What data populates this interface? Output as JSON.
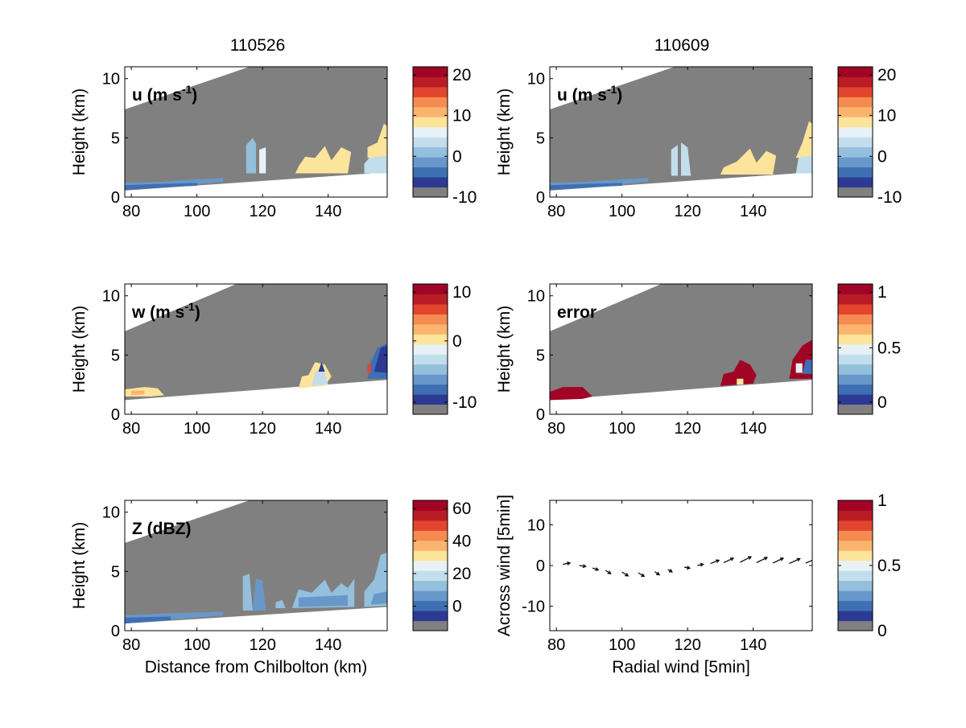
{
  "figure": {
    "columns": [
      {
        "title": "110526"
      },
      {
        "title": "110609"
      }
    ]
  },
  "palette": {
    "gray": "#808080",
    "colors": [
      "#2c3a94",
      "#3f6fb3",
      "#6898c9",
      "#94bfdd",
      "#c2deec",
      "#e8f2f6",
      "#fde49b",
      "#fbb46e",
      "#f58b51",
      "#e1452e",
      "#ba1c26",
      "#a10526"
    ]
  },
  "chart_data": [
    {
      "id": "u_110526",
      "type": "heatmap",
      "column": "110526",
      "label": "u (m s",
      "label_sup": "-1",
      "label_suffix": ")",
      "xlim": [
        78,
        158
      ],
      "ylim": [
        0,
        11
      ],
      "xticks": [
        "80",
        "100",
        "120",
        "140"
      ],
      "yticks": [
        "0",
        "5",
        "10"
      ],
      "ylabel": "Height (km)",
      "xlabel": "",
      "colorbar": {
        "ticks": [
          "20",
          "10",
          "0",
          "-10"
        ]
      }
    },
    {
      "id": "u_110609",
      "type": "heatmap",
      "column": "110609",
      "label": "u (m s",
      "label_sup": "-1",
      "label_suffix": ")",
      "xlim": [
        78,
        158
      ],
      "ylim": [
        0,
        11
      ],
      "xticks": [
        "80",
        "100",
        "120",
        "140"
      ],
      "yticks": [
        "0",
        "5",
        "10"
      ],
      "ylabel": "Height (km)",
      "xlabel": "",
      "colorbar": {
        "ticks": [
          "20",
          "10",
          "0",
          "-10"
        ]
      }
    },
    {
      "id": "w_110526",
      "type": "heatmap",
      "column": "110526",
      "label": "w (m s",
      "label_sup": "-1",
      "label_suffix": ")",
      "xlim": [
        78,
        158
      ],
      "ylim": [
        0,
        11
      ],
      "xticks": [
        "80",
        "100",
        "120",
        "140"
      ],
      "yticks": [
        "0",
        "5",
        "10"
      ],
      "ylabel": "Height (km)",
      "xlabel": "",
      "colorbar": {
        "ticks": [
          "10",
          "0",
          "-10"
        ]
      }
    },
    {
      "id": "error_110609",
      "type": "heatmap",
      "column": "110609",
      "label": "error",
      "label_sup": "",
      "label_suffix": "",
      "xlim": [
        78,
        158
      ],
      "ylim": [
        0,
        11
      ],
      "xticks": [
        "80",
        "100",
        "120",
        "140"
      ],
      "yticks": [
        "0",
        "5",
        "10"
      ],
      "ylabel": "Height (km)",
      "xlabel": "",
      "colorbar": {
        "ticks": [
          "1",
          "0.5",
          "0"
        ]
      }
    },
    {
      "id": "Z_110526",
      "type": "heatmap",
      "column": "110526",
      "label": "Z (dBZ)",
      "label_sup": "",
      "label_suffix": "",
      "xlim": [
        78,
        158
      ],
      "ylim": [
        0,
        11
      ],
      "xticks": [
        "80",
        "100",
        "120",
        "140"
      ],
      "yticks": [
        "0",
        "5",
        "10"
      ],
      "ylabel": "Height (km)",
      "xlabel": "Distance from Chilbolton (km)",
      "colorbar": {
        "ticks": [
          "60",
          "40",
          "20",
          "0"
        ]
      }
    },
    {
      "id": "wind_110609",
      "type": "quiver",
      "column": "110609",
      "label": "",
      "label_sup": "",
      "label_suffix": "",
      "xlim": [
        78,
        158
      ],
      "ylim": [
        -16,
        16
      ],
      "xticks": [
        "80",
        "100",
        "120",
        "140"
      ],
      "yticks": [
        "-10",
        "0",
        "10"
      ],
      "ylabel": "Across wind [5min]",
      "xlabel": "Radial wind [5min]",
      "colorbar": {
        "ticks": [
          "1",
          "0.5",
          "0"
        ]
      },
      "vectors": [
        {
          "x": 82,
          "y": 0.3,
          "u": 2.2,
          "v": 0.4
        },
        {
          "x": 87,
          "y": 0.0,
          "u": 2.0,
          "v": -0.3
        },
        {
          "x": 91,
          "y": -0.6,
          "u": 1.8,
          "v": -0.6
        },
        {
          "x": 95,
          "y": -1.2,
          "u": 1.6,
          "v": -1.0
        },
        {
          "x": 100,
          "y": -1.6,
          "u": 1.9,
          "v": -1.2
        },
        {
          "x": 105,
          "y": -1.8,
          "u": 1.8,
          "v": -1.1
        },
        {
          "x": 110,
          "y": -1.5,
          "u": 1.4,
          "v": -1.0
        },
        {
          "x": 114,
          "y": -1.0,
          "u": 1.3,
          "v": -0.7
        },
        {
          "x": 119,
          "y": -0.4,
          "u": 1.7,
          "v": -0.3
        },
        {
          "x": 123,
          "y": 0.0,
          "u": 1.8,
          "v": 0.4
        },
        {
          "x": 127,
          "y": 0.5,
          "u": 2.6,
          "v": 1.0
        },
        {
          "x": 131,
          "y": 0.7,
          "u": 3.0,
          "v": 1.4
        },
        {
          "x": 136,
          "y": 0.8,
          "u": 3.4,
          "v": 1.7
        },
        {
          "x": 141,
          "y": 0.7,
          "u": 3.3,
          "v": 1.6
        },
        {
          "x": 146,
          "y": 0.6,
          "u": 3.2,
          "v": 1.5
        },
        {
          "x": 151,
          "y": 0.5,
          "u": 3.3,
          "v": 1.5
        },
        {
          "x": 156,
          "y": 0.6,
          "u": 3.4,
          "v": 1.4
        }
      ]
    }
  ]
}
